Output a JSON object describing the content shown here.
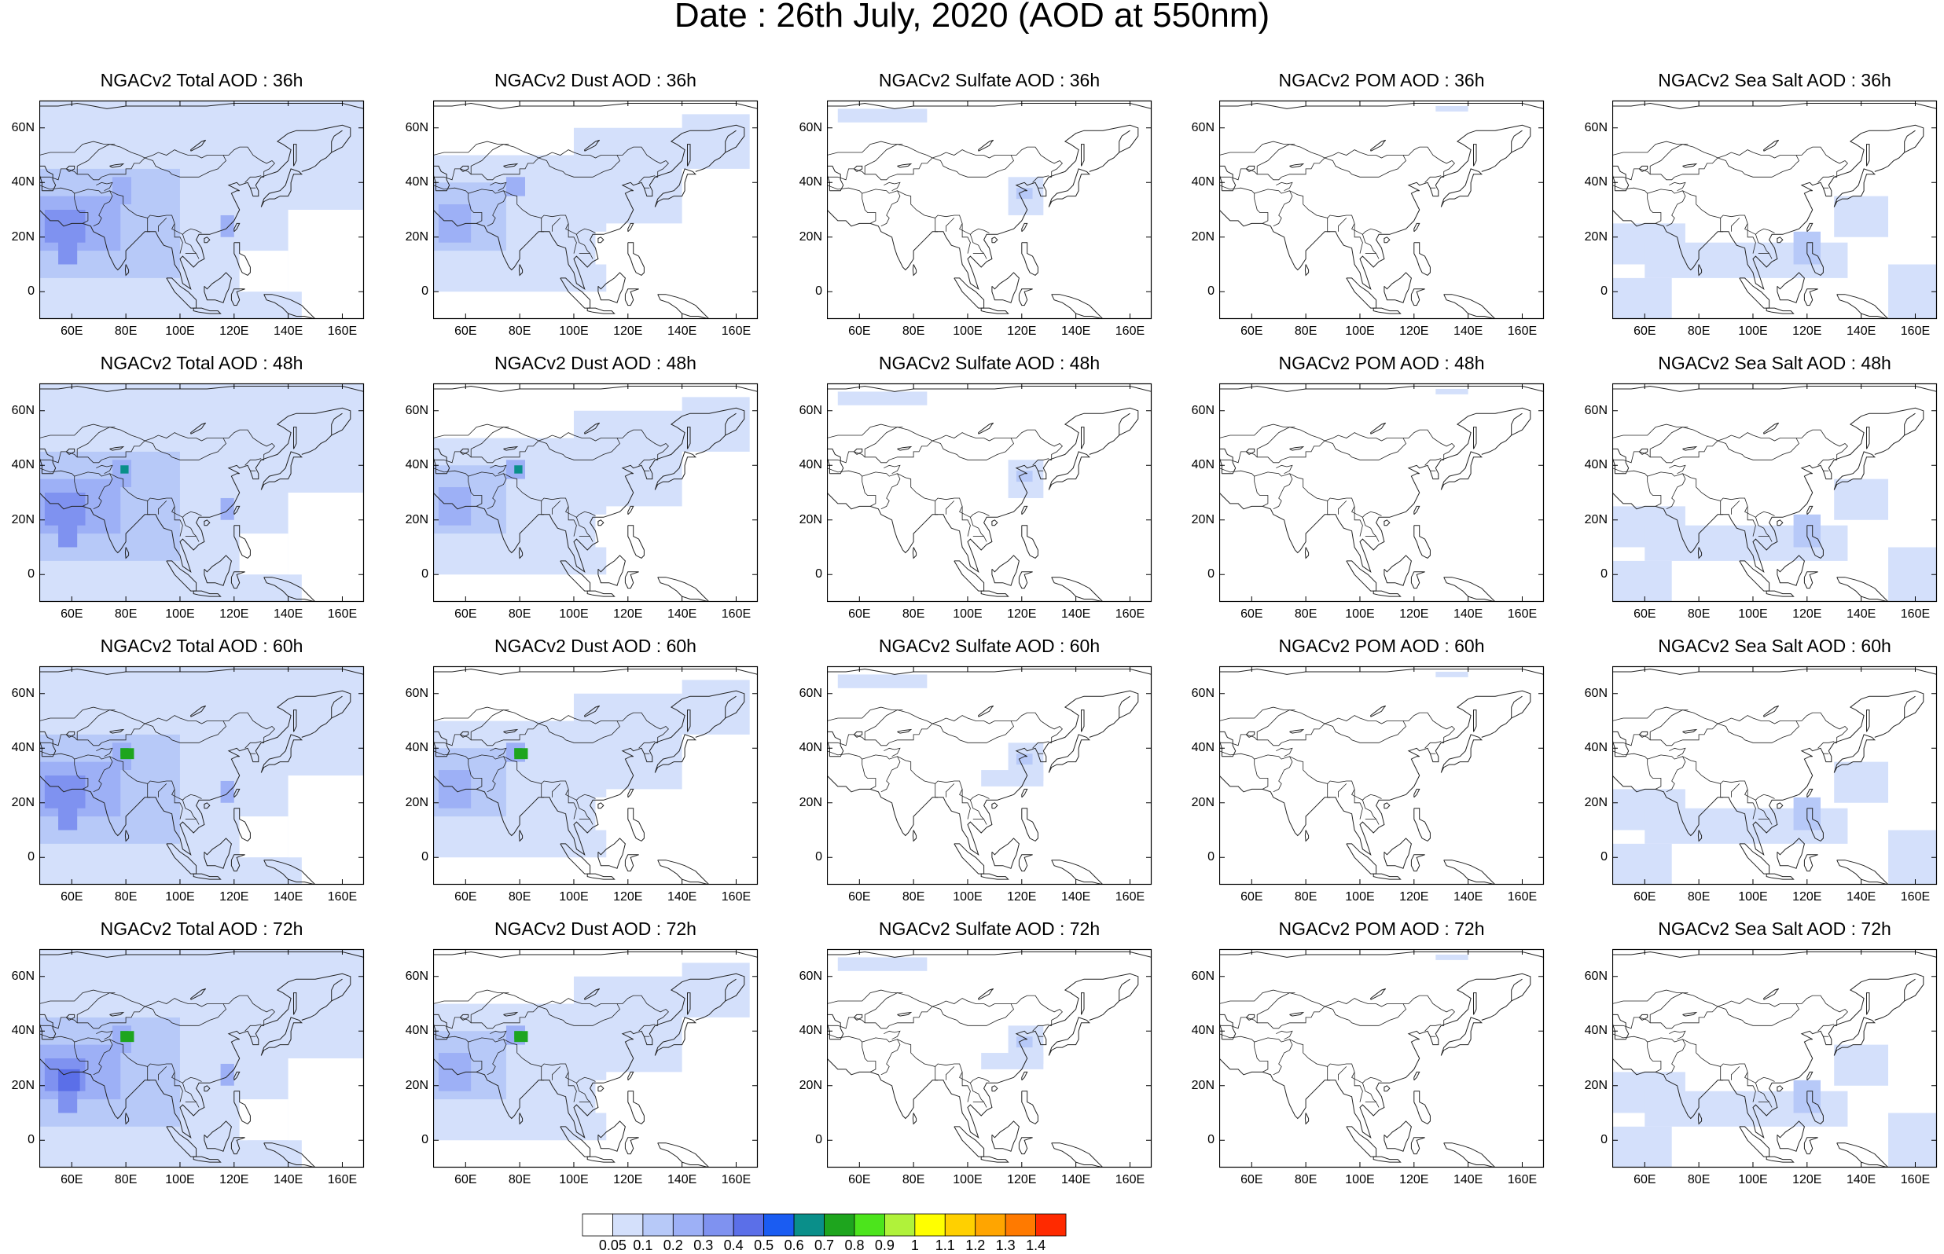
{
  "title": "Date : 26th July, 2020 (AOD at 550nm)",
  "panels": [
    [
      "NGACv2 Total AOD : 36h",
      "NGACv2 Dust AOD : 36h",
      "NGACv2 Sulfate AOD : 36h",
      "NGACv2 POM AOD : 36h",
      "NGACv2 Sea Salt AOD : 36h"
    ],
    [
      "NGACv2 Total AOD : 48h",
      "NGACv2 Dust AOD : 48h",
      "NGACv2 Sulfate AOD : 48h",
      "NGACv2 POM AOD : 48h",
      "NGACv2 Sea Salt AOD : 48h"
    ],
    [
      "NGACv2 Total AOD : 60h",
      "NGACv2 Dust AOD : 60h",
      "NGACv2 Sulfate AOD : 60h",
      "NGACv2 POM AOD : 60h",
      "NGACv2 Sea Salt AOD : 60h"
    ],
    [
      "NGACv2 Total AOD : 72h",
      "NGACv2 Dust AOD : 72h",
      "NGACv2 Sulfate AOD : 72h",
      "NGACv2 POM AOD : 72h",
      "NGACv2 Sea Salt  AOD : 72h"
    ]
  ],
  "x_ticks": [
    "60E",
    "80E",
    "100E",
    "120E",
    "140E",
    "160E"
  ],
  "y_ticks": [
    "60N",
    "40N",
    "20N",
    "0"
  ],
  "colorbar": {
    "labels": [
      "0.05",
      "0.1",
      "0.2",
      "0.3",
      "0.4",
      "0.5",
      "0.6",
      "0.7",
      "0.8",
      "0.9",
      "1",
      "1.1",
      "1.2",
      "1.3",
      "1.4"
    ],
    "colors": [
      "#ffffff",
      "#d4e0fb",
      "#b7c9f8",
      "#9db0f6",
      "#7f92f0",
      "#5b6fe8",
      "#1a5cf2",
      "#0a8f8a",
      "#1ea51e",
      "#4ce41c",
      "#b0f23a",
      "#ffff00",
      "#ffd000",
      "#ffa500",
      "#ff7a00",
      "#ff2a00"
    ]
  },
  "map_data": {
    "lon_range": [
      48,
      168
    ],
    "lat_range": [
      -10,
      70
    ],
    "aod_classes_shown": "mostly 0.05-0.5 (light blue), local peaks 0.7-0.9 near 80E 38N in Dust/Total 48h-72h"
  }
}
